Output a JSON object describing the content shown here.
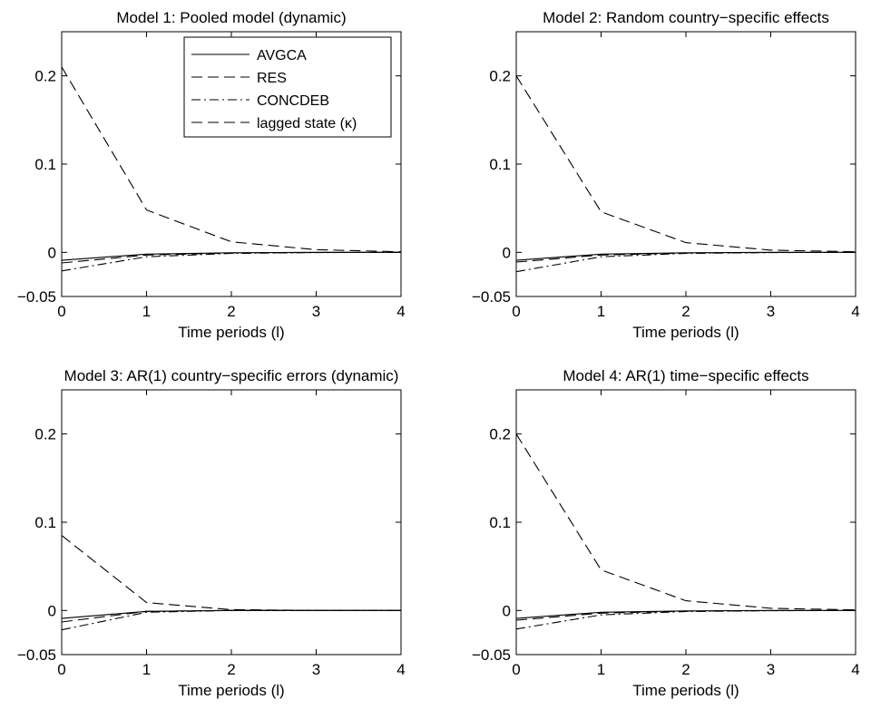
{
  "chart_data": [
    {
      "type": "line",
      "title": "Model 1: Pooled model (dynamic)",
      "xlabel": "Time periods (l)",
      "ylabel": "",
      "xlim": [
        0,
        4
      ],
      "ylim": [
        -0.05,
        0.25
      ],
      "xticks": [
        "0",
        "1",
        "2",
        "3",
        "4"
      ],
      "yticks": [
        "−0.05",
        "0",
        "0.1",
        "0.2"
      ],
      "x": [
        0,
        1,
        2,
        3,
        4
      ],
      "legend": {
        "position": "top-right",
        "entries": [
          "AVGCA",
          "RES",
          "CONCDEB",
          "lagged state (κ)"
        ]
      },
      "series": [
        {
          "name": "AVGCA",
          "style": "solid",
          "values": [
            -0.009,
            -0.002,
            -0.0005,
            0,
            0
          ]
        },
        {
          "name": "RES",
          "style": "dashed",
          "values": [
            0.21,
            0.048,
            0.012,
            0.003,
            0.0007
          ]
        },
        {
          "name": "CONCDEB",
          "style": "dashdot",
          "values": [
            -0.021,
            -0.005,
            -0.0012,
            -0.0003,
            0
          ]
        },
        {
          "name": "lagged state (κ)",
          "style": "dashed",
          "values": [
            -0.012,
            -0.003,
            -0.0008,
            -0.0002,
            0
          ]
        }
      ]
    },
    {
      "type": "line",
      "title": "Model 2: Random country−specific effects",
      "xlabel": "Time periods (l)",
      "ylabel": "",
      "xlim": [
        0,
        4
      ],
      "ylim": [
        -0.05,
        0.25
      ],
      "xticks": [
        "0",
        "1",
        "2",
        "3",
        "4"
      ],
      "yticks": [
        "−0.05",
        "0",
        "0.1",
        "0.2"
      ],
      "x": [
        0,
        1,
        2,
        3,
        4
      ],
      "series": [
        {
          "style": "solid",
          "values": [
            -0.009,
            -0.002,
            -0.0005,
            0,
            0
          ]
        },
        {
          "style": "dashed",
          "values": [
            0.2,
            0.046,
            0.011,
            0.0025,
            0.0006
          ]
        },
        {
          "style": "dashdot",
          "values": [
            -0.022,
            -0.005,
            -0.0012,
            -0.0003,
            0
          ]
        },
        {
          "style": "dashed",
          "values": [
            -0.011,
            -0.003,
            -0.0008,
            -0.0002,
            0
          ]
        }
      ]
    },
    {
      "type": "line",
      "title": "Model 3: AR(1) country−specific errors (dynamic)",
      "xlabel": "Time periods (l)",
      "ylabel": "",
      "xlim": [
        0,
        4
      ],
      "ylim": [
        -0.05,
        0.25
      ],
      "xticks": [
        "0",
        "1",
        "2",
        "3",
        "4"
      ],
      "yticks": [
        "−0.05",
        "0",
        "0.1",
        "0.2"
      ],
      "x": [
        0,
        1,
        2,
        3,
        4
      ],
      "series": [
        {
          "style": "solid",
          "values": [
            -0.009,
            -0.001,
            0,
            0,
            0
          ]
        },
        {
          "style": "dashed",
          "values": [
            0.085,
            0.009,
            0.001,
            0,
            0
          ]
        },
        {
          "style": "dashdot",
          "values": [
            -0.022,
            -0.002,
            0,
            0,
            0
          ]
        },
        {
          "style": "dashed",
          "values": [
            -0.013,
            -0.001,
            0,
            0,
            0
          ]
        }
      ]
    },
    {
      "type": "line",
      "title": "Model 4: AR(1) time−specific effects",
      "xlabel": "Time periods (l)",
      "ylabel": "",
      "xlim": [
        0,
        4
      ],
      "ylim": [
        -0.05,
        0.25
      ],
      "xticks": [
        "0",
        "1",
        "2",
        "3",
        "4"
      ],
      "yticks": [
        "−0.05",
        "0",
        "0.1",
        "0.2"
      ],
      "x": [
        0,
        1,
        2,
        3,
        4
      ],
      "series": [
        {
          "style": "solid",
          "values": [
            -0.009,
            -0.002,
            -0.0005,
            0,
            0
          ]
        },
        {
          "style": "dashed",
          "values": [
            0.2,
            0.046,
            0.011,
            0.0025,
            0.0006
          ]
        },
        {
          "style": "dashdot",
          "values": [
            -0.021,
            -0.005,
            -0.0012,
            -0.0003,
            0
          ]
        },
        {
          "style": "dashed",
          "values": [
            -0.011,
            -0.003,
            -0.0008,
            -0.0002,
            0
          ]
        }
      ]
    }
  ]
}
